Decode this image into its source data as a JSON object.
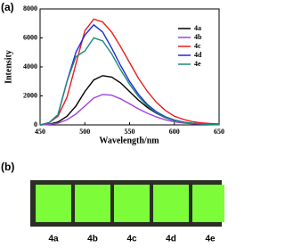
{
  "chart_data": {
    "type": "line",
    "x_label": "Wavelength/nm",
    "y_label": "Intensity",
    "x": [
      450,
      460,
      470,
      480,
      490,
      500,
      510,
      520,
      530,
      540,
      550,
      560,
      570,
      580,
      590,
      600,
      610,
      620,
      630,
      640,
      650
    ],
    "series": [
      {
        "name": "4a",
        "color": "#000000",
        "values": [
          0,
          50,
          200,
          600,
          1300,
          2300,
          3100,
          3400,
          3300,
          2900,
          2300,
          1700,
          1200,
          800,
          500,
          300,
          180,
          100,
          60,
          30,
          20
        ]
      },
      {
        "name": "4b",
        "color": "#a040e0",
        "values": [
          0,
          30,
          120,
          350,
          750,
          1300,
          1850,
          2100,
          2050,
          1800,
          1450,
          1100,
          800,
          550,
          350,
          220,
          130,
          80,
          50,
          30,
          20
        ]
      },
      {
        "name": "4c",
        "color": "#ee1c1c",
        "values": [
          0,
          150,
          600,
          1900,
          4200,
          6500,
          7300,
          7100,
          6400,
          5400,
          4300,
          3200,
          2300,
          1550,
          1000,
          600,
          380,
          230,
          140,
          90,
          60
        ]
      },
      {
        "name": "4d",
        "color": "#1c2cd8",
        "values": [
          0,
          150,
          700,
          3000,
          5000,
          6200,
          6900,
          6400,
          5300,
          4100,
          3000,
          2100,
          1400,
          900,
          560,
          340,
          200,
          120,
          70,
          40,
          25
        ]
      },
      {
        "name": "4e",
        "color": "#1a8a7a",
        "values": [
          0,
          150,
          700,
          3000,
          4700,
          5100,
          6000,
          5800,
          4900,
          3800,
          2800,
          1950,
          1300,
          830,
          520,
          310,
          180,
          110,
          65,
          40,
          25
        ]
      }
    ],
    "xlim": [
      450,
      650
    ],
    "xticks": [
      450,
      500,
      550,
      600,
      650
    ],
    "ylim": [
      0,
      8000
    ],
    "yticks": [
      0,
      2000,
      4000,
      6000,
      8000
    ],
    "grid": false,
    "legend": "upper right"
  },
  "panel_labels": [
    "(a)",
    "(b)"
  ],
  "photo": {
    "labels": [
      "4a",
      "4b",
      "4c",
      "4d",
      "4e"
    ]
  }
}
